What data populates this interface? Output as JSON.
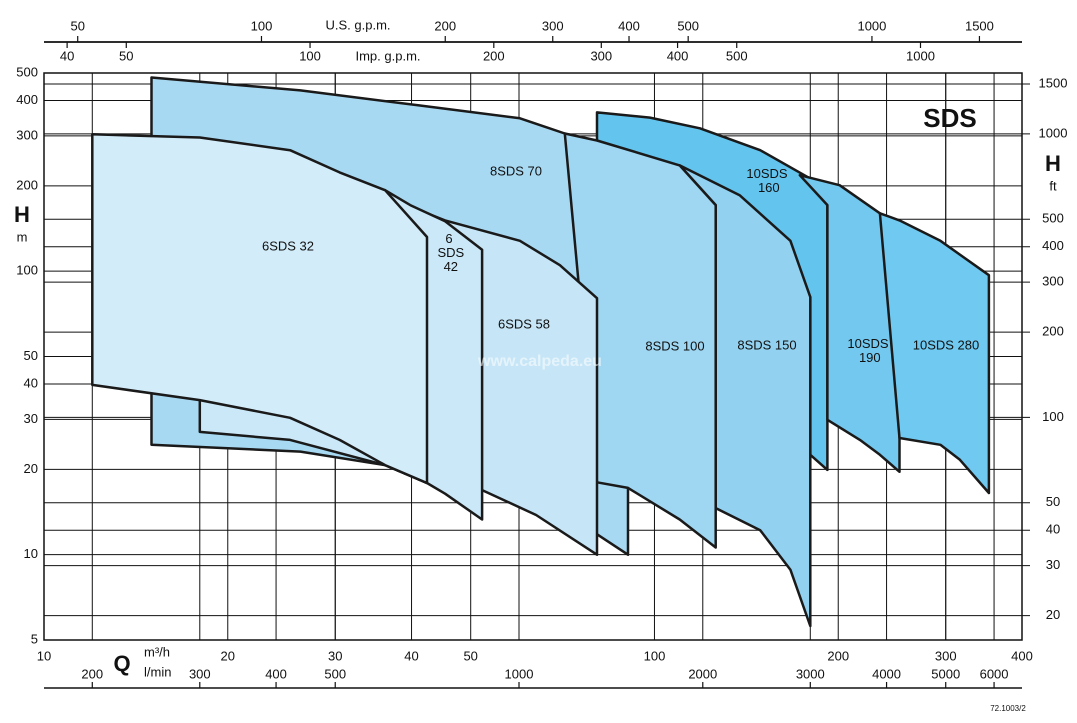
{
  "chart_data": {
    "type": "area",
    "title": "SDS",
    "watermark": "www.calpeda.eu",
    "code": "72.1003/2",
    "x_label": "Q",
    "x_unit": "m³/h",
    "y_label": "H",
    "y_unit": "m",
    "y2_label": "H",
    "y2_unit": "ft",
    "log_x": true,
    "log_y": true,
    "grid": true,
    "xlim": [
      10,
      400
    ],
    "xticks": [
      10,
      20,
      30,
      40,
      50,
      100,
      200,
      300,
      400
    ],
    "ylim": [
      5,
      500
    ],
    "yticks": [
      5,
      10,
      20,
      30,
      40,
      50,
      100,
      200,
      300,
      400,
      500
    ],
    "y2lim": [
      16.4,
      1640.4
    ],
    "y2ticks": [
      20,
      30,
      40,
      50,
      100,
      200,
      300,
      400,
      500,
      1000,
      1500
    ],
    "secondary_x": [
      {
        "unit": "l/min",
        "position": "bottom",
        "lim": [
          166.7,
          6666.7
        ],
        "ticks": [
          200,
          300,
          400,
          500,
          1000,
          2000,
          3000,
          4000,
          5000,
          6000
        ]
      },
      {
        "unit": "U.S. g.p.m.",
        "position": "top-above",
        "lim": [
          44.03,
          1761.2
        ],
        "ticks": [
          50,
          100,
          200,
          300,
          400,
          500,
          1000,
          1500
        ]
      },
      {
        "unit": "Imp. g.p.m.",
        "position": "top-below",
        "lim": [
          36.66,
          1466.5
        ],
        "ticks": [
          40,
          50,
          100,
          200,
          300,
          400,
          500,
          1000
        ]
      }
    ],
    "series": [
      {
        "name": "8SDS 70",
        "color": "#a8d9f2",
        "x": [
          15,
          26.3,
          41.3,
          60.2,
          71.3,
          81.4,
          90.5,
          90.5,
          70,
          52.2,
          42.4,
          36.2,
          26.3,
          15
        ],
        "values": [
          482,
          434,
          384,
          346,
          306,
          246,
          201,
          10,
          14.4,
          16.9,
          17.9,
          20.7,
          23.1,
          24.4
        ]
      },
      {
        "name": "10SDS 160",
        "color": "#63c4ee",
        "x": [
          80.5,
          98.3,
          118.7,
          149,
          180,
          192,
          192,
          180,
          180,
          126,
          80.5
        ],
        "values": [
          363,
          348,
          319,
          267,
          212,
          171,
          19.9,
          22.5,
          81,
          171,
          289
        ]
      },
      {
        "name": "8SDS 150",
        "color": "#92d1f0",
        "x": [
          110,
          138,
          167,
          180,
          180,
          167,
          149,
          126,
          126
        ],
        "values": [
          236,
          185,
          128,
          81,
          5.6,
          8.85,
          12.2,
          14.6,
          171
        ]
      },
      {
        "name": "8SDS 100",
        "color": "#9fd6f1",
        "x": [
          71.3,
          80.5,
          110,
          126,
          126,
          110,
          90.5,
          80.5
        ],
        "values": [
          306,
          289,
          236,
          171,
          10.6,
          13.3,
          17.2,
          18
        ]
      },
      {
        "name": "6SDS 58",
        "color": "#c6e6f7",
        "x": [
          42.4,
          45.4,
          60.2,
          70,
          80.5,
          80.5,
          64,
          52.2,
          42.4,
          36.2
        ],
        "values": [
          160,
          151,
          128,
          105,
          80.3,
          10,
          13.8,
          16.9,
          17.9,
          20.7
        ]
      },
      {
        "name": "6 SDS 42",
        "color": "#cbe8f8",
        "x": [
          36.2,
          39.8,
          45.4,
          52.2,
          52.2,
          45.4,
          42.4,
          36.2,
          25.3,
          18,
          18
        ],
        "values": [
          193,
          171,
          150,
          119,
          13.3,
          16.4,
          17.9,
          20.7,
          25.4,
          27.1,
          35.1
        ]
      },
      {
        "name": "6SDS 32",
        "color": "#d3ecf9",
        "x": [
          12,
          18,
          25.3,
          30.5,
          36.2,
          42.4,
          42.4,
          36.2,
          30.5,
          25.3,
          18,
          12
        ],
        "values": [
          304,
          296,
          267,
          223,
          193,
          132,
          17.9,
          20.7,
          25.4,
          30.4,
          35.1,
          39.7
        ]
      },
      {
        "name": "10SDS 190",
        "color": "#72c8ef",
        "x": [
          173,
          201,
          234,
          252,
          252,
          234,
          217,
          192,
          192
        ],
        "values": [
          218,
          201,
          160,
          128,
          19.6,
          22.5,
          25.4,
          29.9,
          171
        ]
      },
      {
        "name": "10SDS 280",
        "color": "#70c9f0",
        "x": [
          234,
          252,
          294,
          353,
          353,
          316.5,
          294,
          252
        ],
        "values": [
          160,
          151,
          128,
          96.8,
          16.5,
          21.6,
          24.4,
          25.8
        ]
      }
    ]
  }
}
